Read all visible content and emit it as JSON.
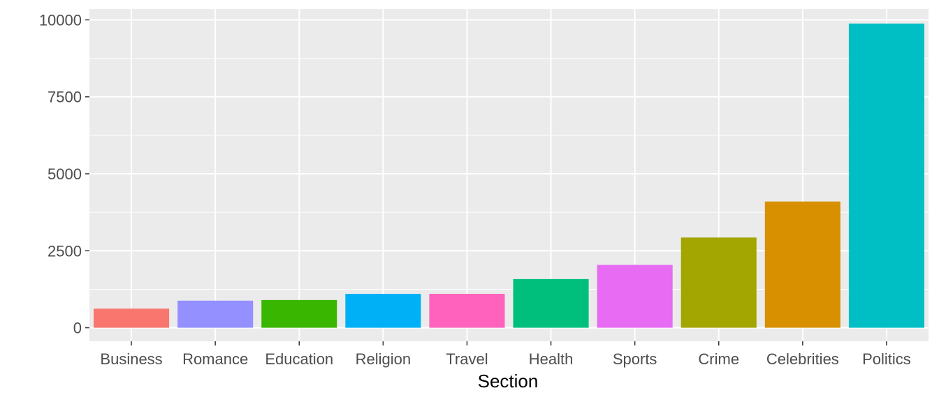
{
  "chart_data": {
    "type": "bar",
    "title": "",
    "xlabel": "Section",
    "ylabel": "",
    "categories": [
      "Business",
      "Romance",
      "Education",
      "Religion",
      "Travel",
      "Health",
      "Sports",
      "Crime",
      "Celebrities",
      "Politics"
    ],
    "values": [
      620,
      880,
      900,
      1100,
      1100,
      1580,
      2040,
      2930,
      4100,
      9880
    ],
    "colors": [
      "#F8766D",
      "#9590FF",
      "#39B600",
      "#00B0F6",
      "#FF62BC",
      "#00BF7D",
      "#E76BF3",
      "#A3A500",
      "#D89000",
      "#00BFC4"
    ],
    "ylim": [
      -440,
      10350
    ],
    "yticks": [
      0,
      2500,
      5000,
      7500,
      10000
    ],
    "ytick_labels": [
      "0",
      "2500",
      "5000",
      "7500",
      "10000"
    ],
    "grid": true,
    "legend": "none",
    "panel_background": "#EBEBEB",
    "grid_color": "#FFFFFF"
  }
}
